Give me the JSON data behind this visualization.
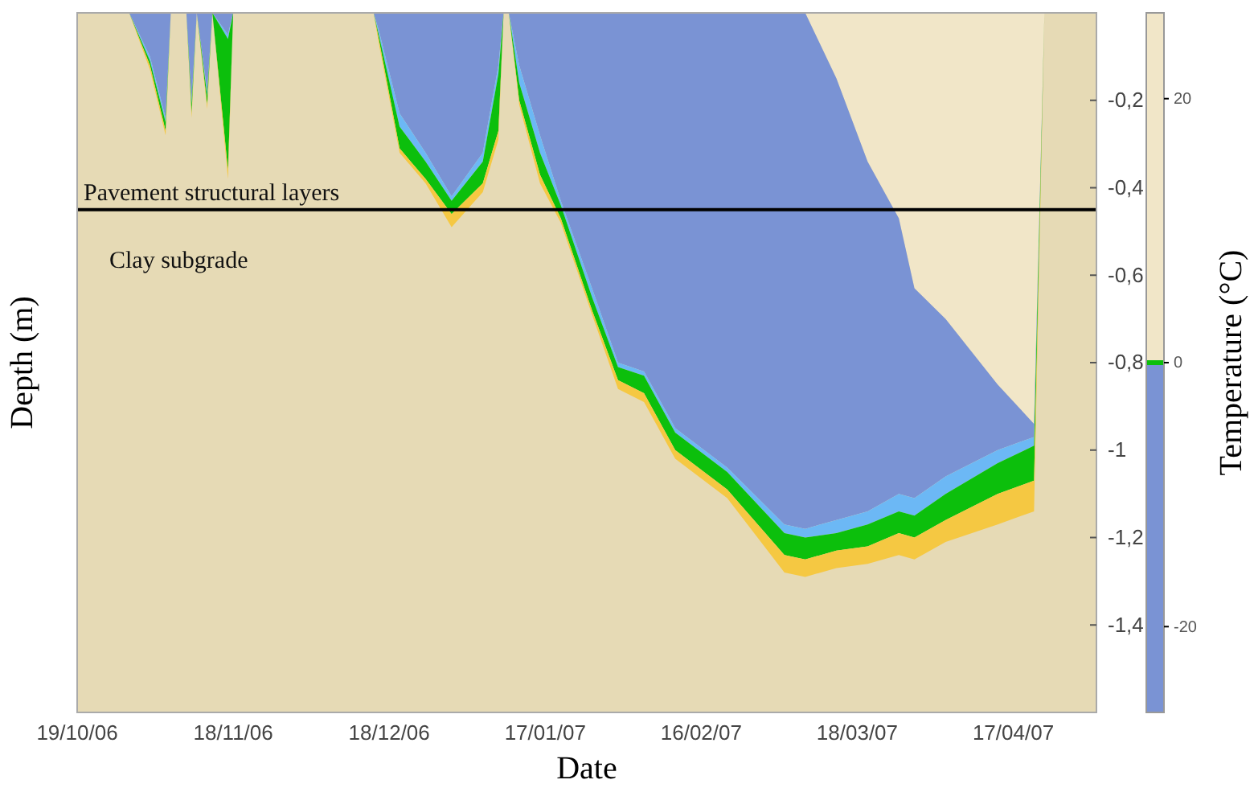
{
  "chart_data": {
    "type": "area",
    "stacked": true,
    "xlabel": "Date",
    "ylabel": "Depth (m)",
    "clabel": "Temperature (°C)",
    "x": [
      "2006-10-19",
      "2006-10-29",
      "2006-11-02",
      "2006-11-05",
      "2006-11-06",
      "2006-11-09",
      "2006-11-10",
      "2006-11-11",
      "2006-11-13",
      "2006-11-14",
      "2006-11-17",
      "2006-11-18",
      "2006-12-15",
      "2006-12-16",
      "2006-12-20",
      "2006-12-25",
      "2006-12-30",
      "2007-01-05",
      "2007-01-08",
      "2007-01-09",
      "2007-01-10",
      "2007-01-12",
      "2007-01-16",
      "2007-01-20",
      "2007-01-26",
      "2007-01-31",
      "2007-02-05",
      "2007-02-11",
      "2007-02-21",
      "2007-03-04",
      "2007-03-08",
      "2007-03-14",
      "2007-03-20",
      "2007-03-26",
      "2007-03-29",
      "2007-04-04",
      "2007-04-14",
      "2007-04-21",
      "2007-04-23",
      "2007-05-03"
    ],
    "series": [
      {
        "color": "#f1e6c8",
        "values": [
          0,
          0,
          0,
          0,
          0,
          0,
          0,
          0,
          0,
          0,
          0,
          0,
          0,
          0,
          0,
          0,
          0,
          0,
          0,
          0,
          0,
          0,
          0,
          0,
          0,
          0,
          0,
          0,
          0,
          0,
          0,
          -0.15,
          -0.34,
          -0.47,
          -0.63,
          -0.7,
          -0.85,
          -0.94,
          0,
          0
        ]
      },
      {
        "color": "#7a93d4",
        "values": [
          0,
          0,
          -0.1,
          -0.24,
          0,
          0,
          -0.2,
          0,
          -0.18,
          0,
          -0.05,
          0,
          0,
          -0.04,
          -0.23,
          -0.32,
          -0.42,
          -0.32,
          -0.12,
          0,
          0,
          -0.12,
          -0.28,
          -0.43,
          -0.63,
          -0.8,
          -0.82,
          -0.95,
          -1.04,
          -1.17,
          -1.18,
          -1.01,
          -0.8,
          -0.63,
          -0.48,
          -0.36,
          -0.15,
          -0.03,
          0,
          0
        ]
      },
      {
        "color": "#6cb8f5",
        "values": [
          0,
          0,
          -0.01,
          -0.01,
          0,
          0,
          -0.01,
          0,
          -0.01,
          0,
          -0.01,
          0,
          0,
          -0.01,
          -0.03,
          -0.02,
          -0.01,
          -0.02,
          -0.02,
          0,
          0,
          -0.04,
          -0.04,
          -0.01,
          -0.02,
          -0.01,
          -0.01,
          -0.01,
          -0.01,
          -0.02,
          -0.02,
          -0.03,
          -0.03,
          -0.04,
          -0.04,
          -0.04,
          -0.03,
          -0.02,
          0,
          0
        ]
      },
      {
        "color": "#0cbf0c",
        "values": [
          0,
          0,
          -0.01,
          -0.02,
          0,
          0,
          -0.02,
          0,
          -0.02,
          0,
          -0.3,
          0,
          0,
          -0.01,
          -0.05,
          -0.04,
          -0.03,
          -0.05,
          -0.13,
          0,
          0,
          -0.04,
          -0.05,
          -0.03,
          -0.03,
          -0.03,
          -0.04,
          -0.04,
          -0.04,
          -0.05,
          -0.05,
          -0.04,
          -0.05,
          -0.05,
          -0.05,
          -0.06,
          -0.07,
          -0.08,
          0,
          0
        ]
      },
      {
        "color": "#f5c842",
        "values": [
          0,
          0,
          -0.01,
          -0.01,
          0,
          0,
          -0.01,
          0,
          -0.01,
          0,
          -0.02,
          0,
          0,
          -0.01,
          -0.01,
          -0.01,
          -0.03,
          -0.02,
          -0.02,
          0,
          0,
          -0.01,
          -0.02,
          -0.01,
          -0.01,
          -0.02,
          -0.02,
          -0.02,
          -0.02,
          -0.04,
          -0.04,
          -0.04,
          -0.04,
          -0.05,
          -0.05,
          -0.05,
          -0.07,
          -0.07,
          0,
          0
        ]
      }
    ],
    "xlim": [
      "2006-10-19",
      "2007-05-03"
    ],
    "xticks": [
      {
        "value": "2006-10-19",
        "label": "19/10/06"
      },
      {
        "value": "2006-11-18",
        "label": "18/11/06"
      },
      {
        "value": "2006-12-18",
        "label": "18/12/06"
      },
      {
        "value": "2007-01-17",
        "label": "17/01/07"
      },
      {
        "value": "2007-02-16",
        "label": "16/02/07"
      },
      {
        "value": "2007-03-18",
        "label": "18/03/07"
      },
      {
        "value": "2007-04-17",
        "label": "17/04/07"
      }
    ],
    "ylim": [
      -1.6,
      0
    ],
    "yticks": [
      {
        "value": -0.2,
        "label": "-0,2"
      },
      {
        "value": -0.4,
        "label": "-0,4"
      },
      {
        "value": -0.6,
        "label": "-0,6"
      },
      {
        "value": -0.8,
        "label": "-0,8"
      },
      {
        "value": -1,
        "label": "-1"
      },
      {
        "value": -1.2,
        "label": "-1,2"
      },
      {
        "value": -1.4,
        "label": "-1,4"
      }
    ],
    "clim": [
      -26.5,
      26.5
    ],
    "cticks": [
      -20,
      0,
      20
    ],
    "ref_lines": [
      {
        "axis": "y",
        "value": -0.45,
        "color": "#000000"
      }
    ],
    "annotations": [
      "Pavement structural layers",
      "Clay subgrade"
    ]
  }
}
